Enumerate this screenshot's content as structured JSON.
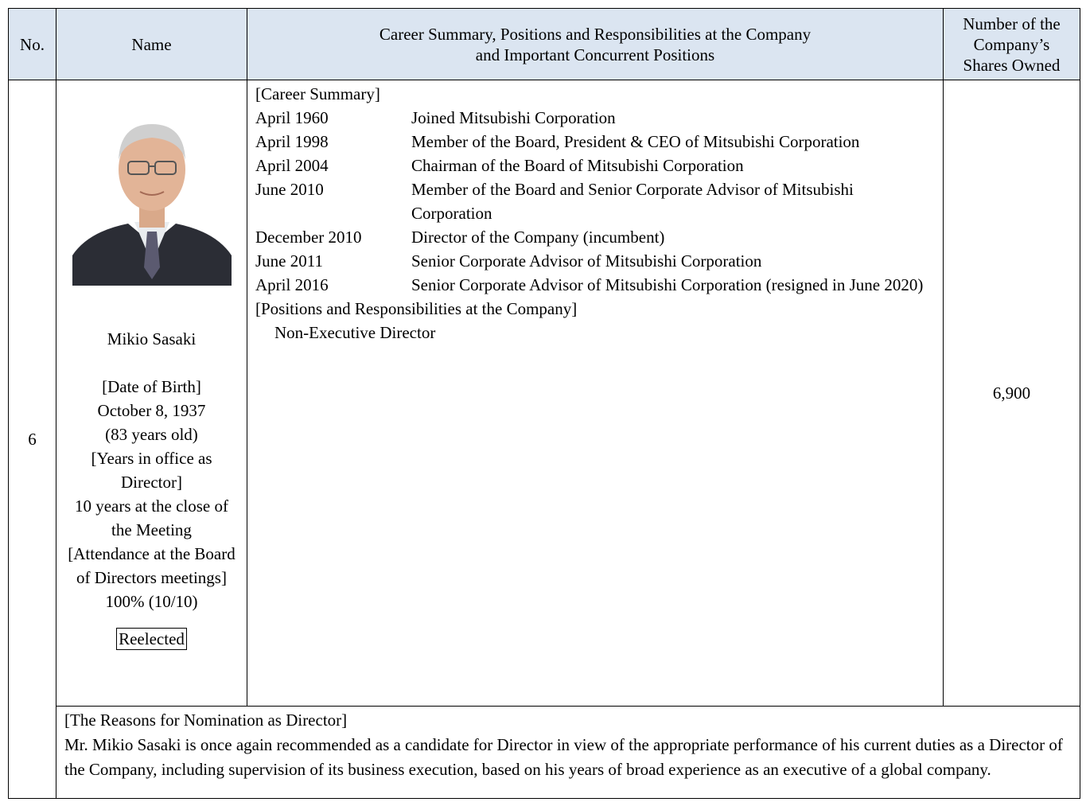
{
  "header": {
    "no": "No.",
    "name": "Name",
    "career": [
      "Career Summary, Positions and Responsibilities at the Company",
      "and Important Concurrent Positions"
    ],
    "shares": [
      "Number of the",
      "Company’s",
      "Shares Owned"
    ]
  },
  "candidate": {
    "no": "6",
    "name": "Mikio Sasaki",
    "details": [
      "[Date of Birth]",
      "October 8, 1937",
      "(83 years old)",
      "[Years in office as Director]",
      "10 years at the close of the Meeting",
      "[Attendance at the Board of Directors meetings]",
      "100% (10/10)"
    ],
    "badge": "Reelected",
    "career_heading": "[Career Summary]",
    "career": [
      {
        "date": "April 1960",
        "text": "Joined Mitsubishi Corporation"
      },
      {
        "date": "April 1998",
        "text": "Member of the Board, President & CEO of Mitsubishi Corporation"
      },
      {
        "date": "April 2004",
        "text": "Chairman of the Board of Mitsubishi Corporation"
      },
      {
        "date": "June 2010",
        "text": "Member of the Board and Senior Corporate Advisor of Mitsubishi Corporation"
      },
      {
        "date": "December 2010",
        "text": "Director of the Company (incumbent)"
      },
      {
        "date": "June 2011",
        "text": "Senior Corporate Advisor of Mitsubishi Corporation"
      },
      {
        "date": "April 2016",
        "text": "Senior Corporate Advisor of Mitsubishi Corporation (resigned in June 2020)"
      }
    ],
    "positions_heading": "[Positions and Responsibilities at the Company]",
    "positions": "Non-Executive Director",
    "shares": "6,900"
  },
  "reasons": {
    "heading": "[The Reasons for Nomination as Director]",
    "text": "Mr. Mikio Sasaki is once again recommended as a candidate for Director in view of the appropriate performance of his current duties as a Director of the Company, including supervision of its business execution, based on his years of broad experience as an executive of a global company."
  }
}
